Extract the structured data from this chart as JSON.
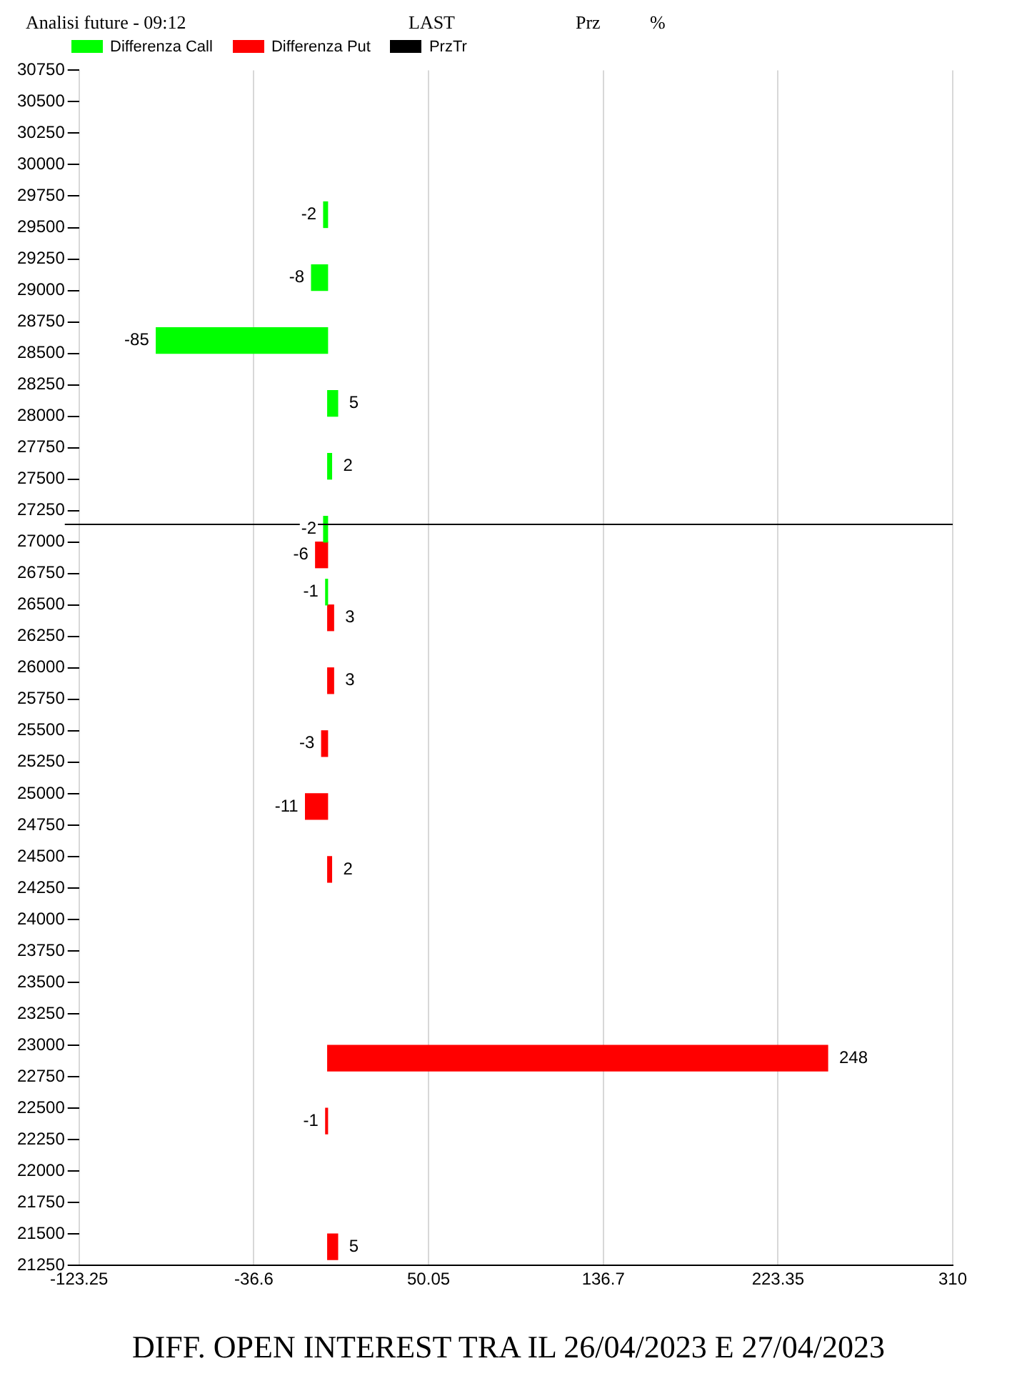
{
  "chart_data": {
    "type": "bar",
    "orientation": "horizontal",
    "title": "DIFF. OPEN INTEREST TRA IL 26/04/2023 E 27/04/2023",
    "annotations": [
      "Analisi future - 09:12",
      "LAST",
      "Prz",
      "%"
    ],
    "series": [
      {
        "name": "Differenza Call",
        "color": "#00ff00",
        "x": [
          29500,
          29000,
          28500,
          28000,
          27500,
          27000,
          26500
        ],
        "values": [
          -2,
          -8,
          -85,
          5,
          2,
          -2,
          -1
        ]
      },
      {
        "name": "Differenza Put",
        "color": "#ff0000",
        "x": [
          27000,
          26500,
          26000,
          25500,
          25000,
          24500,
          23000,
          22500,
          21500
        ],
        "values": [
          -6,
          3,
          3,
          -3,
          -11,
          2,
          248,
          -1,
          5
        ]
      }
    ],
    "ref_lines": [
      {
        "axis": "y",
        "value": 27140,
        "label": "PrzTr",
        "color": "#000000"
      }
    ],
    "xlim": [
      -123.25,
      310
    ],
    "xticks": [
      -123.25,
      -36.6,
      50.05,
      136.7,
      223.35,
      310
    ],
    "ylim": [
      21250,
      30750
    ],
    "yticks": [
      21250,
      21500,
      21750,
      22000,
      22250,
      22500,
      22750,
      23000,
      23250,
      23500,
      23750,
      24000,
      24250,
      24500,
      24750,
      25000,
      25250,
      25500,
      25750,
      26000,
      26250,
      26500,
      26750,
      27000,
      27250,
      27500,
      27750,
      28000,
      28250,
      28500,
      28750,
      29000,
      29250,
      29500,
      29750,
      30000,
      30250,
      30500,
      30750
    ],
    "grid": "x",
    "legend": "top left",
    "data_labels": true
  }
}
